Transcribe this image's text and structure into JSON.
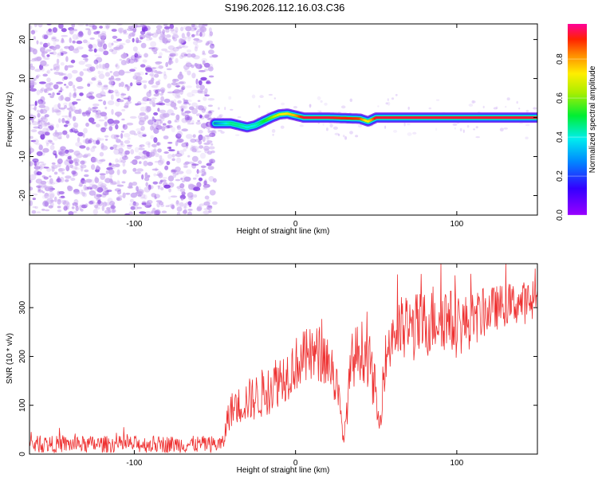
{
  "title": "S196.2026.112.16.03.C36",
  "chart_data": [
    {
      "type": "heatmap",
      "xlabel": "Height of straight line (km)",
      "ylabel": "Frequency (Hz)",
      "xlim": [
        -165,
        150
      ],
      "ylim": [
        -25,
        24
      ],
      "xticks": [
        -100,
        0,
        100
      ],
      "yticks": [
        -20,
        -10,
        0,
        10,
        20
      ],
      "colorbar": {
        "label": "Normalized spectral amplitude",
        "range": [
          0,
          0.98
        ],
        "ticks": [
          0.0,
          0.2,
          0.4,
          0.6,
          0.8
        ]
      },
      "noise_region_km": [
        -165,
        -50
      ],
      "signal_track": {
        "x_km": [
          -50,
          -40,
          -35,
          -30,
          -25,
          -20,
          -15,
          -10,
          -5,
          0,
          5,
          20,
          40,
          45,
          50,
          100,
          150
        ],
        "freq_hz": [
          -1.5,
          -1.5,
          -2.0,
          -2.5,
          -2.0,
          -1.0,
          0.0,
          0.8,
          1.0,
          0.5,
          0.0,
          0.0,
          -0.3,
          -1.0,
          0.0,
          0.0,
          0.0
        ],
        "amplitude": [
          0.25,
          0.45,
          0.45,
          0.4,
          0.4,
          0.5,
          0.6,
          0.7,
          0.75,
          0.8,
          0.95,
          0.95,
          0.9,
          0.7,
          0.95,
          0.95,
          0.95
        ]
      }
    },
    {
      "type": "line",
      "xlabel": "Height of straight line (km)",
      "ylabel": "SNR (10 * v/v)",
      "xlim": [
        -165,
        150
      ],
      "ylim": [
        0,
        390
      ],
      "xticks": [
        -100,
        0,
        100
      ],
      "yticks": [
        0,
        100,
        200,
        300
      ],
      "color": "#ee3030",
      "series": [
        {
          "name": "SNR",
          "x_km": [
            -165,
            -45,
            -42,
            -40,
            -35,
            -30,
            -25,
            -20,
            -15,
            -10,
            -5,
            0,
            5,
            10,
            15,
            20,
            25,
            28,
            30,
            32,
            35,
            40,
            45,
            50,
            52,
            55,
            60,
            70,
            80,
            90,
            100,
            110,
            120,
            130,
            140,
            150
          ],
          "mean": [
            20,
            20,
            75,
            90,
            100,
            110,
            115,
            125,
            140,
            155,
            165,
            185,
            195,
            200,
            205,
            195,
            150,
            80,
            25,
            100,
            190,
            215,
            200,
            120,
            40,
            180,
            250,
            255,
            265,
            290,
            260,
            275,
            295,
            305,
            310,
            310
          ],
          "spread": [
            22,
            22,
            40,
            45,
            50,
            55,
            60,
            65,
            70,
            70,
            70,
            70,
            75,
            75,
            75,
            75,
            70,
            40,
            10,
            50,
            75,
            80,
            80,
            60,
            20,
            70,
            90,
            90,
            90,
            95,
            80,
            70,
            60,
            55,
            55,
            55
          ]
        }
      ]
    }
  ]
}
